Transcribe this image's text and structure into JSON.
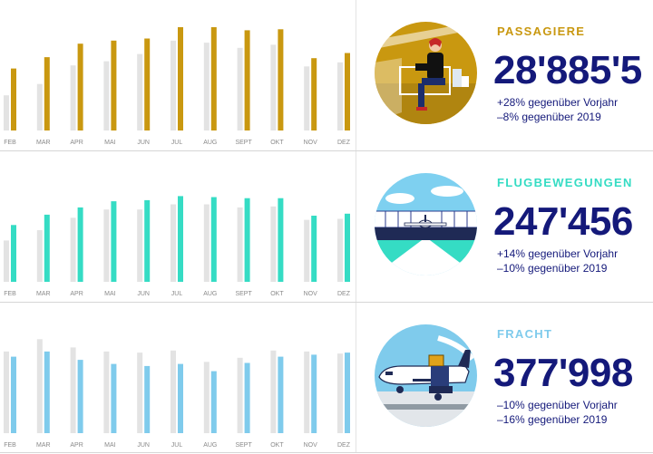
{
  "colors": {
    "passengers": "#c99810",
    "movements": "#35dcc4",
    "cargo": "#7fcbec",
    "previous_year": "#e3e3e3",
    "kpi_text": "#14197a"
  },
  "panels": [
    {
      "label": "PASSAGIERE",
      "value": "28'885'5",
      "lines": [
        "+28% gegenüber Vorjahr",
        "–8% gegenüber 2019"
      ],
      "icon": "airport-lounge-traveler-icon"
    },
    {
      "label": "FLUGBEWEGUNGEN",
      "value": "247'456",
      "lines": [
        "+14% gegenüber Vorjahr",
        "–10% gegenüber 2019"
      ],
      "icon": "airplane-on-runway-icon"
    },
    {
      "label": "FRACHT",
      "value": "377'998",
      "lines": [
        "–10% gegenüber Vorjahr",
        "–16% gegenüber 2019"
      ],
      "icon": "cargo-plane-loading-icon"
    }
  ],
  "chart_data": [
    {
      "type": "bar",
      "categories": [
        "FEB",
        "MAR",
        "APR",
        "MAI",
        "JUN",
        "JUL",
        "AUG",
        "SEPT",
        "OKT",
        "NOV",
        "DEZ"
      ],
      "ylim": [
        0,
        100
      ],
      "series": [
        {
          "values": [
            34,
            45,
            63,
            67,
            74,
            87,
            85,
            80,
            83,
            62,
            66
          ]
        },
        {
          "values": [
            60,
            71,
            84,
            87,
            89,
            100,
            100,
            97,
            98,
            70,
            75
          ]
        }
      ]
    },
    {
      "type": "bar",
      "categories": [
        "FEB",
        "MAR",
        "APR",
        "MAI",
        "JUN",
        "JUL",
        "AUG",
        "SEPT",
        "OKT",
        "NOV",
        "DEZ"
      ],
      "ylim": [
        0,
        100
      ],
      "series": [
        {
          "values": [
            40,
            50,
            62,
            70,
            70,
            75,
            75,
            72,
            73,
            60,
            61
          ]
        },
        {
          "values": [
            55,
            65,
            72,
            78,
            79,
            83,
            82,
            81,
            81,
            64,
            66
          ]
        }
      ]
    },
    {
      "type": "bar",
      "categories": [
        "FEB",
        "MAR",
        "APR",
        "MAI",
        "JUN",
        "JUL",
        "AUG",
        "SEPT",
        "OKT",
        "NOV",
        "DEZ"
      ],
      "ylim": [
        0,
        100
      ],
      "series": [
        {
          "values": [
            79,
            91,
            83,
            79,
            78,
            80,
            69,
            73,
            80,
            79,
            77
          ]
        },
        {
          "values": [
            74,
            79,
            71,
            67,
            65,
            67,
            60,
            68,
            74,
            76,
            78
          ]
        }
      ]
    }
  ]
}
